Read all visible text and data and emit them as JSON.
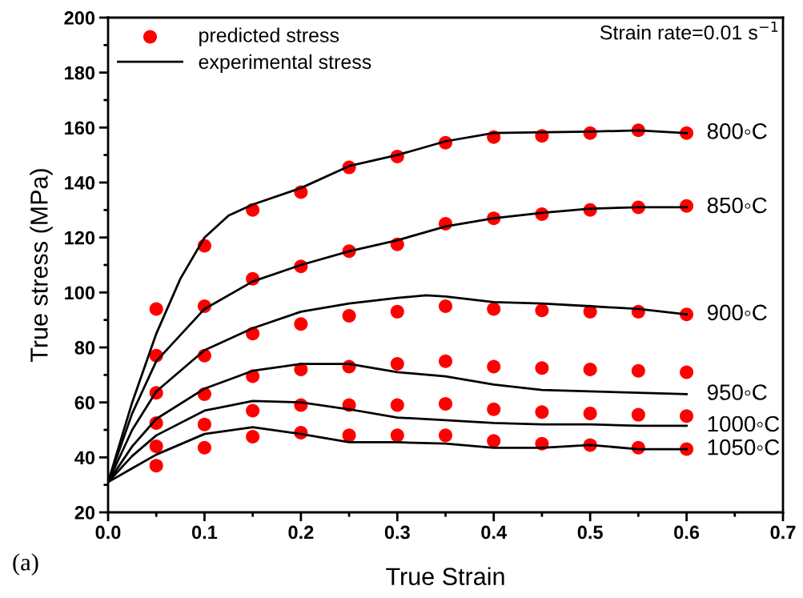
{
  "chart_data": {
    "type": "line",
    "xlabel": "True Strain",
    "ylabel": "True stress (MPa)",
    "xlim": [
      0,
      0.7
    ],
    "xticks": [
      {
        "value": 0,
        "label": "0.0"
      },
      0.1,
      0.2,
      0.3,
      0.4,
      0.5,
      0.6,
      0.7
    ],
    "ylim": [
      20,
      200
    ],
    "yticks": [
      20,
      40,
      60,
      80,
      100,
      120,
      140,
      160,
      180,
      200
    ],
    "grid": false,
    "legend": "top left",
    "series": [
      {
        "type": "scatter",
        "name": "predicted stress",
        "color": "#ff0000",
        "marker": "circle",
        "x": [
          0.05,
          0.1,
          0.15,
          0.2,
          0.25,
          0.3,
          0.35,
          0.4,
          0.45,
          0.5,
          0.55,
          0.6
        ],
        "values": [
          94,
          117,
          130,
          136.5,
          145.5,
          149.5,
          154.5,
          156.5,
          157,
          158,
          159,
          158
        ]
      },
      {
        "type": "scatter",
        "color": "#ff0000",
        "marker": "circle",
        "x": [
          0.05,
          0.1,
          0.15,
          0.2,
          0.25,
          0.3,
          0.35,
          0.4,
          0.45,
          0.5,
          0.55,
          0.6
        ],
        "values": [
          77,
          95,
          105,
          109.5,
          115,
          117.5,
          125,
          127,
          128.5,
          130,
          131,
          131.5
        ]
      },
      {
        "type": "scatter",
        "color": "#ff0000",
        "marker": "circle",
        "x": [
          0.05,
          0.1,
          0.15,
          0.2,
          0.25,
          0.3,
          0.35,
          0.4,
          0.45,
          0.5,
          0.55,
          0.6
        ],
        "values": [
          63.5,
          77,
          85,
          88.5,
          91.5,
          93,
          95,
          94,
          93.5,
          93,
          93,
          92
        ]
      },
      {
        "type": "scatter",
        "color": "#ff0000",
        "marker": "circle",
        "x": [
          0.05,
          0.1,
          0.15,
          0.2,
          0.25,
          0.3,
          0.35,
          0.4,
          0.45,
          0.5,
          0.55,
          0.6
        ],
        "values": [
          52.5,
          63,
          69.5,
          72,
          73,
          74,
          75,
          73,
          72.5,
          72,
          71.5,
          71
        ]
      },
      {
        "type": "scatter",
        "color": "#ff0000",
        "marker": "circle",
        "x": [
          0.05,
          0.1,
          0.15,
          0.2,
          0.25,
          0.3,
          0.35,
          0.4,
          0.45,
          0.5,
          0.55,
          0.6
        ],
        "values": [
          44,
          52,
          57,
          59,
          59,
          59,
          59.5,
          57.5,
          56.5,
          56,
          55.5,
          55
        ]
      },
      {
        "type": "scatter",
        "color": "#ff0000",
        "marker": "circle",
        "x": [
          0.05,
          0.1,
          0.15,
          0.2,
          0.25,
          0.3,
          0.35,
          0.4,
          0.45,
          0.5,
          0.55,
          0.6
        ],
        "values": [
          37,
          43.5,
          47.5,
          49,
          48,
          48,
          48,
          46,
          45,
          44.5,
          43.5,
          43
        ]
      },
      {
        "type": "line",
        "name": "experimental stress",
        "color": "#000000",
        "marker": "none",
        "x": [
          0,
          0.025,
          0.05,
          0.075,
          0.1,
          0.125,
          0.15,
          0.2,
          0.25,
          0.3,
          0.35,
          0.4,
          0.5,
          0.55,
          0.6
        ],
        "values": [
          31,
          60,
          85,
          105,
          120,
          128,
          132,
          138,
          146,
          150,
          155,
          158,
          158.5,
          159,
          158
        ]
      },
      {
        "type": "line",
        "color": "#000000",
        "marker": "none",
        "x": [
          0,
          0.025,
          0.05,
          0.1,
          0.15,
          0.2,
          0.25,
          0.3,
          0.35,
          0.4,
          0.45,
          0.5,
          0.55,
          0.6
        ],
        "values": [
          31,
          56,
          75,
          94,
          104,
          110,
          115,
          119,
          124,
          127,
          129,
          130.5,
          131,
          131
        ]
      },
      {
        "type": "line",
        "color": "#000000",
        "marker": "none",
        "x": [
          0,
          0.025,
          0.05,
          0.1,
          0.15,
          0.2,
          0.25,
          0.3,
          0.33,
          0.35,
          0.4,
          0.45,
          0.5,
          0.55,
          0.6
        ],
        "values": [
          31,
          50,
          64,
          79,
          87,
          93,
          96,
          98,
          99,
          98.5,
          96.5,
          96,
          95,
          94,
          92
        ]
      },
      {
        "type": "line",
        "color": "#000000",
        "marker": "none",
        "x": [
          0,
          0.025,
          0.05,
          0.1,
          0.15,
          0.2,
          0.25,
          0.3,
          0.35,
          0.4,
          0.45,
          0.5,
          0.55,
          0.6
        ],
        "values": [
          31,
          44,
          54,
          65,
          71.5,
          74,
          74,
          71,
          69.5,
          66.5,
          64.5,
          64,
          63.5,
          63
        ]
      },
      {
        "type": "line",
        "color": "#000000",
        "marker": "none",
        "x": [
          0,
          0.025,
          0.05,
          0.1,
          0.15,
          0.2,
          0.25,
          0.3,
          0.35,
          0.4,
          0.45,
          0.5,
          0.55,
          0.6
        ],
        "values": [
          31,
          40.5,
          48,
          57,
          60.5,
          60,
          57.5,
          54.5,
          53.5,
          52.5,
          52,
          52,
          51.5,
          51.5
        ]
      },
      {
        "type": "line",
        "color": "#000000",
        "marker": "none",
        "x": [
          0,
          0.025,
          0.05,
          0.1,
          0.15,
          0.2,
          0.25,
          0.3,
          0.35,
          0.4,
          0.45,
          0.5,
          0.55,
          0.6
        ],
        "values": [
          31,
          36,
          41,
          48.5,
          51,
          48.5,
          45.5,
          45.5,
          45,
          43.5,
          43.5,
          44.5,
          43,
          43
        ]
      }
    ],
    "annotations": [
      "Strain rate=0.01 s$^{−1}$",
      "(a)",
      "800◦C",
      "850◦C",
      "900◦C",
      "950◦C",
      "1000◦C",
      "1050◦C"
    ]
  }
}
